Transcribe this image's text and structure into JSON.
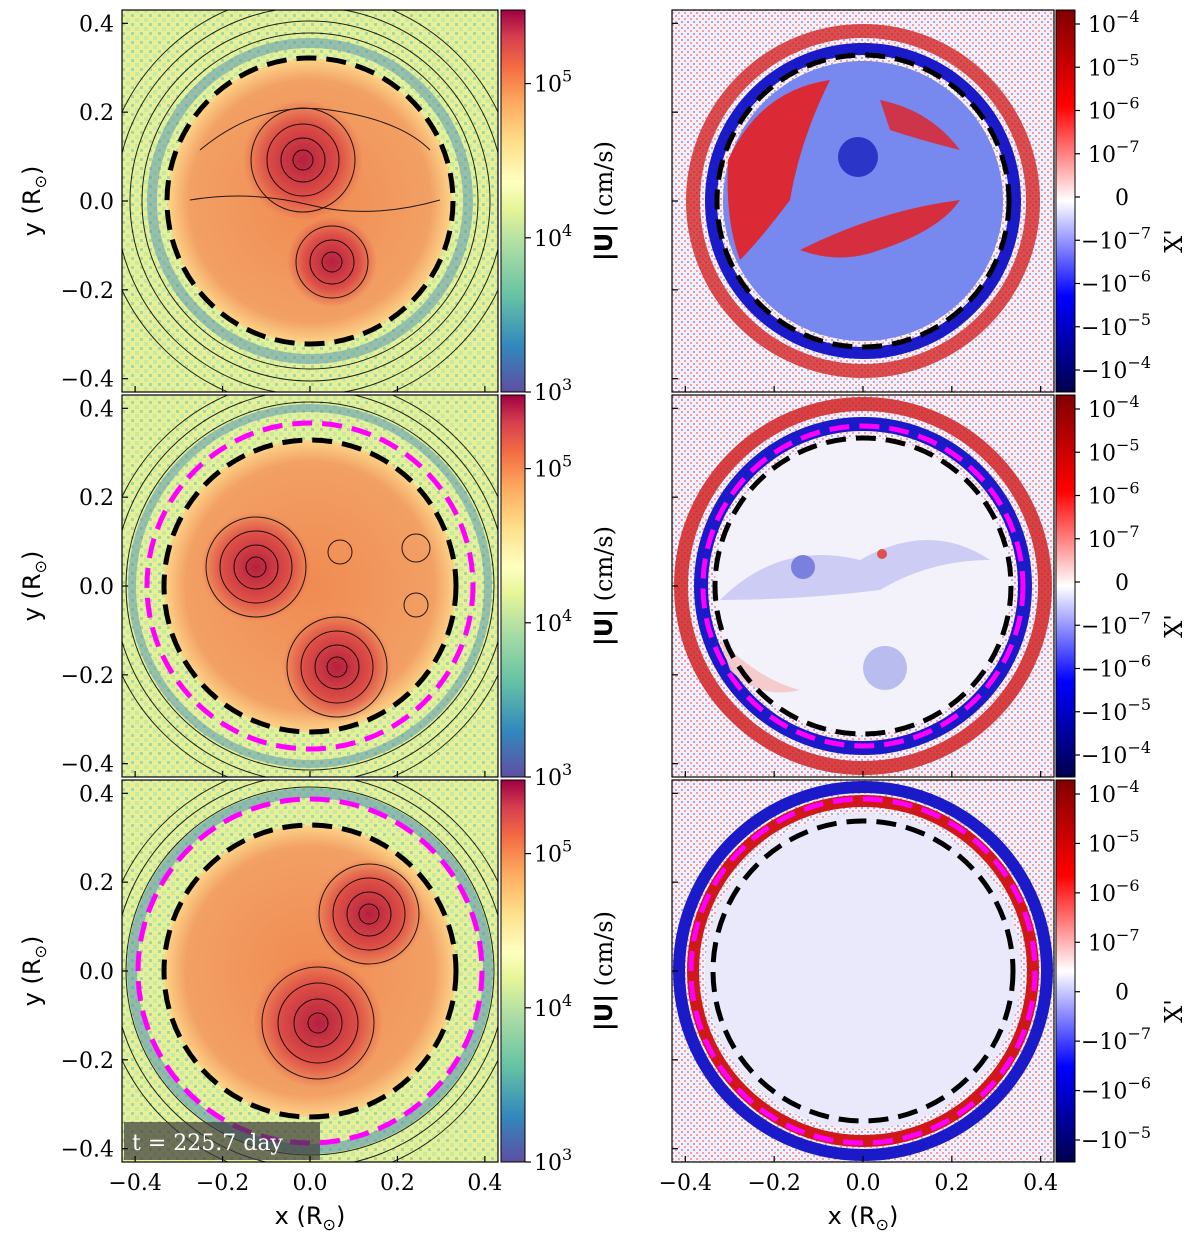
{
  "chart_data": [
    {
      "type": "heatmap",
      "panel": "left-top",
      "quantity": "velocity magnitude with streamlines",
      "colormap": "Spectral_r",
      "colorbar": {
        "scale": "log",
        "range": [
          1000,
          300000
        ],
        "label_main": "|U|",
        "label_unit": " (cm/s)",
        "ticks": [
          {
            "value": 100000,
            "base": "10",
            "exp": "5"
          },
          {
            "value": 10000,
            "base": "10",
            "exp": "4"
          },
          {
            "value": 1000,
            "base": "10",
            "exp": "3"
          }
        ]
      },
      "xlim": [
        -0.43,
        0.43
      ],
      "ylim": [
        -0.43,
        0.43
      ],
      "xticks": [],
      "yticks": [
        "0.4",
        "0.2",
        "0.0",
        "−0.2",
        "−0.4"
      ],
      "xlabel": "",
      "ylabel": "y  (R",
      "circles": [
        {
          "style": "black-dashed",
          "radius": 0.34
        }
      ],
      "vortices": [
        {
          "x": -0.03,
          "y": 0.08
        },
        {
          "x": 0.05,
          "y": -0.14
        }
      ]
    },
    {
      "type": "heatmap",
      "panel": "right-top",
      "quantity": "composition fluctuation",
      "colormap": "seismic",
      "colorbar": {
        "scale": "symlog",
        "label": "X'",
        "ticks": [
          {
            "base": "10",
            "exp": "−4"
          },
          {
            "base": "10",
            "exp": "−5"
          },
          {
            "base": "10",
            "exp": "−6"
          },
          {
            "base": "10",
            "exp": "−7"
          },
          {
            "plain": "0"
          },
          {
            "base": "−10",
            "exp": "−7"
          },
          {
            "base": "−10",
            "exp": "−6"
          },
          {
            "base": "−10",
            "exp": "−5"
          },
          {
            "base": "−10",
            "exp": "−4"
          }
        ]
      },
      "xlim": [
        -0.43,
        0.43
      ],
      "ylim": [
        -0.43,
        0.43
      ],
      "circles": [
        {
          "style": "black-dashed",
          "radius": 0.34
        }
      ]
    },
    {
      "type": "heatmap",
      "panel": "left-middle",
      "quantity": "velocity magnitude with streamlines",
      "colormap": "Spectral_r",
      "colorbar": {
        "scale": "log",
        "range": [
          1000,
          300000
        ],
        "label_main": "|U|",
        "label_unit": " (cm/s)",
        "ticks": [
          {
            "value": 100000,
            "base": "10",
            "exp": "5"
          },
          {
            "value": 10000,
            "base": "10",
            "exp": "4"
          },
          {
            "value": 1000,
            "base": "10",
            "exp": "3"
          }
        ]
      },
      "xlim": [
        -0.43,
        0.43
      ],
      "ylim": [
        -0.43,
        0.43
      ],
      "yticks": [
        "0.4",
        "0.2",
        "0.0",
        "−0.2",
        "−0.4"
      ],
      "ylabel": "y  (R",
      "circles": [
        {
          "style": "black-dashed",
          "radius": 0.34
        },
        {
          "style": "magenta-dashed",
          "radius": 0.38
        }
      ],
      "vortices": [
        {
          "x": -0.13,
          "y": 0.04
        },
        {
          "x": 0.05,
          "y": -0.18
        },
        {
          "x": 0.05,
          "y": 0.05
        }
      ]
    },
    {
      "type": "heatmap",
      "panel": "right-middle",
      "quantity": "composition fluctuation",
      "colormap": "seismic",
      "colorbar": {
        "scale": "symlog",
        "label": "X'",
        "ticks": [
          {
            "base": "10",
            "exp": "−4"
          },
          {
            "base": "10",
            "exp": "−5"
          },
          {
            "base": "10",
            "exp": "−6"
          },
          {
            "base": "10",
            "exp": "−7"
          },
          {
            "plain": "0"
          },
          {
            "base": "−10",
            "exp": "−7"
          },
          {
            "base": "−10",
            "exp": "−6"
          },
          {
            "base": "−10",
            "exp": "−5"
          },
          {
            "base": "−10",
            "exp": "−4"
          }
        ]
      },
      "xlim": [
        -0.43,
        0.43
      ],
      "ylim": [
        -0.43,
        0.43
      ],
      "circles": [
        {
          "style": "black-dashed",
          "radius": 0.34
        },
        {
          "style": "magenta-dashed",
          "radius": 0.38
        }
      ]
    },
    {
      "type": "heatmap",
      "panel": "left-bottom",
      "quantity": "velocity magnitude with streamlines",
      "colormap": "Spectral_r",
      "colorbar": {
        "scale": "log",
        "range": [
          1000,
          300000
        ],
        "label_main": "|U|",
        "label_unit": " (cm/s)",
        "ticks": [
          {
            "value": 100000,
            "base": "10",
            "exp": "5"
          },
          {
            "value": 10000,
            "base": "10",
            "exp": "4"
          },
          {
            "value": 1000,
            "base": "10",
            "exp": "3"
          }
        ]
      },
      "xlim": [
        -0.43,
        0.43
      ],
      "ylim": [
        -0.43,
        0.43
      ],
      "xticks": [
        "−0.4",
        "−0.2",
        "0.0",
        "0.2",
        "0.4"
      ],
      "yticks": [
        "0.4",
        "0.2",
        "0.0",
        "−0.2",
        "−0.4"
      ],
      "xlabel": "x  (R",
      "ylabel": "y  (R",
      "annotation": "t = 225.7 day",
      "circles": [
        {
          "style": "black-dashed",
          "radius": 0.34
        },
        {
          "style": "magenta-dashed",
          "radius": 0.4
        }
      ],
      "vortices": [
        {
          "x": 0.12,
          "y": 0.13
        },
        {
          "x": 0.01,
          "y": -0.12
        }
      ]
    },
    {
      "type": "heatmap",
      "panel": "right-bottom",
      "quantity": "composition fluctuation",
      "colormap": "seismic",
      "colorbar": {
        "scale": "symlog",
        "label": "X'",
        "ticks": [
          {
            "base": "10",
            "exp": "−4"
          },
          {
            "base": "10",
            "exp": "−5"
          },
          {
            "base": "10",
            "exp": "−6"
          },
          {
            "base": "10",
            "exp": "−7"
          },
          {
            "plain": "0"
          },
          {
            "base": "−10",
            "exp": "−7"
          },
          {
            "base": "−10",
            "exp": "−6"
          },
          {
            "base": "−10",
            "exp": "−5"
          }
        ]
      },
      "xlim": [
        -0.43,
        0.43
      ],
      "ylim": [
        -0.43,
        0.43
      ],
      "xticks": [
        "−0.4",
        "−0.2",
        "0.0",
        "0.2",
        "0.4"
      ],
      "xlabel": "x  (R",
      "circles": [
        {
          "style": "black-dashed",
          "radius": 0.34
        },
        {
          "style": "magenta-dashed",
          "radius": 0.4
        }
      ]
    }
  ],
  "colors": {
    "velocity_low": "#5e4fa2",
    "velocity_mid": "#ffffbf",
    "velocity_high": "#9e0142",
    "xp_neg": "#00004c",
    "xp_zero": "#ffffff",
    "xp_pos": "#800000",
    "circle_black": "#000000",
    "circle_magenta": "#ff00ff"
  }
}
